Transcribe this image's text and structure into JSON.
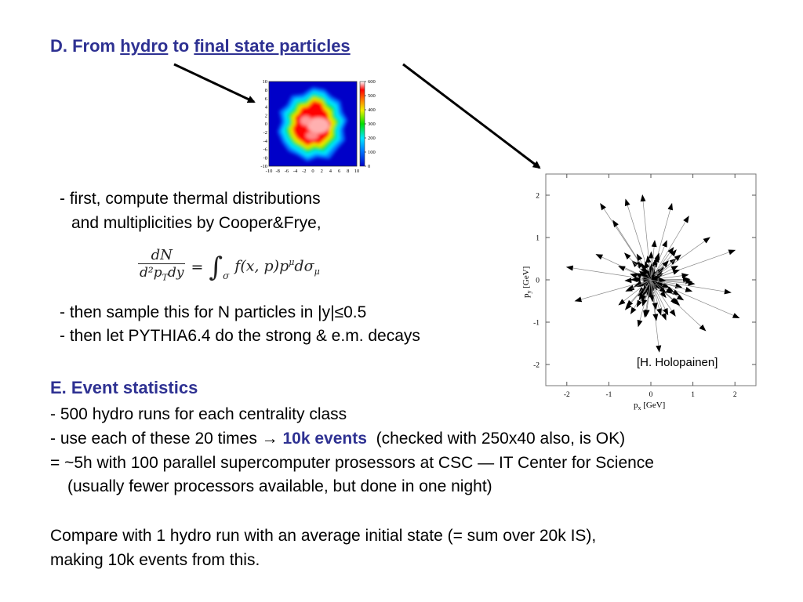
{
  "section_d": {
    "prefix": "D. From ",
    "hydro": "hydro",
    "to": " to ",
    "final": "final state particles"
  },
  "steps": {
    "line1": "- first, compute thermal distributions",
    "line2": "and multiplicities by Cooper&Frye,",
    "line3": "- then sample this for N particles in |y|≤0.5",
    "line4": "- then let PYTHIA6.4 do the strong & e.m. decays"
  },
  "formula": {
    "lhs_num": "dN",
    "lhs_den": "d²p",
    "lhs_den_sub": "T",
    "lhs_den_tail": "dy",
    "equals": "=",
    "integral": "∫",
    "int_sub": "σ",
    "rhs": "f(x, p)p",
    "rhs_sup": "μ",
    "rhs_tail": "dσ",
    "rhs_sub": "μ"
  },
  "heatmap": {
    "y_ticks": [
      "10",
      "8",
      "6",
      "4",
      "2",
      "0",
      "-2",
      "-4",
      "-6",
      "-8",
      "-10"
    ],
    "x_ticks": [
      "-10",
      "-8",
      "-6",
      "-4",
      "-2",
      "0",
      "2",
      "4",
      "6",
      "8",
      "10"
    ],
    "colorbar_ticks": [
      "600",
      "500",
      "400",
      "300",
      "200",
      "100",
      "0"
    ],
    "colormap": [
      "#0000c8",
      "#0077ff",
      "#00e5ff",
      "#00e000",
      "#f0f000",
      "#ff6a00",
      "#ff0000",
      "#ffffff"
    ]
  },
  "arrow_plot": {
    "xlabel": "p",
    "xlabel_sub": "x",
    "xlabel_unit": " [GeV]",
    "ylabel": "p",
    "ylabel_sub": "y",
    "ylabel_unit": " [GeV]",
    "x_ticks": [
      "-2",
      "-1",
      "0",
      "1",
      "2"
    ],
    "y_ticks": [
      "2",
      "1",
      "0",
      "-1",
      "-2"
    ],
    "credit": "[H. Holopainen]"
  },
  "section_e": {
    "title": "E. Event statistics",
    "line1": "- 500 hydro runs for each centrality class",
    "line2_a": "- use each of these 20 times",
    "line2_arrow": "→",
    "line2_b": "10k events",
    "line2_c": "(checked with 250x40 also, is OK)",
    "line3": "= ~5h with 100 parallel supercomputer prosessors at CSC — IT Center for Science",
    "line4": "(usually fewer processors available, but done in one night)"
  },
  "compare": {
    "line1": "Compare with 1 hydro run with an average initial state (= sum over 20k IS),",
    "line2": "making 10k events from this."
  }
}
